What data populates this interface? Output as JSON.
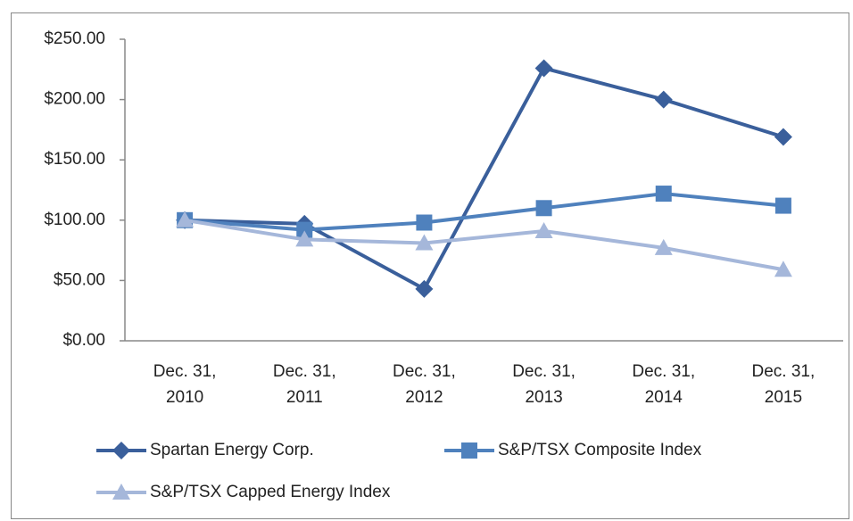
{
  "chart_data": {
    "type": "line",
    "categories": [
      "Dec. 31, 2010",
      "Dec. 31, 2011",
      "Dec. 31, 2012",
      "Dec. 31, 2013",
      "Dec. 31, 2014",
      "Dec. 31, 2015"
    ],
    "series": [
      {
        "name": "Spartan Energy Corp.",
        "color": "#3a5f9b",
        "marker": "diamond",
        "values": [
          100,
          97,
          43,
          226,
          200,
          169
        ]
      },
      {
        "name": "S&P/TSX Composite Index",
        "color": "#4f81bd",
        "marker": "square",
        "values": [
          100,
          92,
          98,
          110,
          122,
          112
        ]
      },
      {
        "name": "S&P/TSX Capped Energy Index",
        "color": "#a5b7da",
        "marker": "triangle",
        "values": [
          100,
          84,
          81,
          91,
          77,
          59
        ]
      }
    ],
    "ylim": [
      0,
      250
    ],
    "yticks": [
      {
        "value": 0,
        "label": "$0.00"
      },
      {
        "value": 50,
        "label": "$50.00"
      },
      {
        "value": 100,
        "label": "$100.00"
      },
      {
        "value": 150,
        "label": "$150.00"
      },
      {
        "value": 200,
        "label": "$200.00"
      },
      {
        "value": 250,
        "label": "$250.00"
      }
    ],
    "grid": false
  }
}
